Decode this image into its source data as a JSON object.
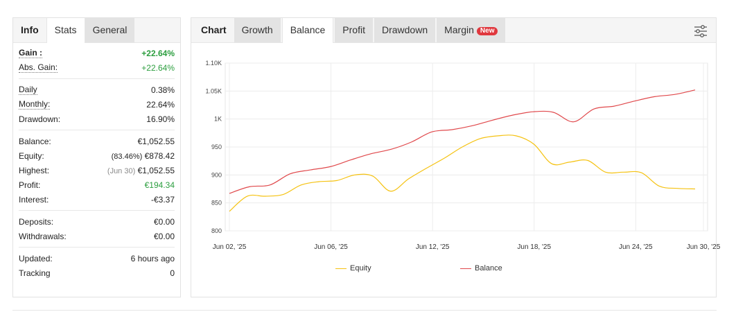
{
  "left_tabs": [
    "Info",
    "Stats",
    "General"
  ],
  "stats": {
    "gain_label": "Gain :",
    "gain_value": "+22.64%",
    "abs_gain_label": "Abs. Gain:",
    "abs_gain_value": "+22.64%",
    "daily_label": "Daily",
    "daily_value": "0.38%",
    "monthly_label": "Monthly:",
    "monthly_value": "22.64%",
    "drawdown_label": "Drawdown:",
    "drawdown_value": "16.90%",
    "balance_label": "Balance:",
    "balance_value": "€1,052.55",
    "equity_label": "Equity:",
    "equity_pct": "(83.46%)",
    "equity_value": "€878.42",
    "highest_label": "Highest:",
    "highest_date": "(Jun 30)",
    "highest_value": "€1,052.55",
    "profit_label": "Profit:",
    "profit_value": "€194.34",
    "interest_label": "Interest:",
    "interest_value": "-€3.37",
    "deposits_label": "Deposits:",
    "deposits_value": "€0.00",
    "withdrawals_label": "Withdrawals:",
    "withdrawals_value": "€0.00",
    "updated_label": "Updated:",
    "updated_value": "6 hours ago",
    "tracking_label": "Tracking",
    "tracking_value": "0"
  },
  "right_tabs": {
    "chart": "Chart",
    "growth": "Growth",
    "balance": "Balance",
    "profit": "Profit",
    "drawdown": "Drawdown",
    "margin": "Margin",
    "new_badge": "New"
  },
  "icons": {
    "settings": "sliders-icon"
  },
  "colors": {
    "equity": "#f5c211",
    "balance": "#e0484b",
    "gain_green": "#2c9e3f",
    "badge": "#e0383e"
  },
  "chart_data": {
    "type": "line",
    "x_ticks": [
      "Jun 02, '25",
      "Jun 06, '25",
      "Jun 12, '25",
      "Jun 18, '25",
      "Jun 24, '25",
      "Jun 30, '25"
    ],
    "y_ticks": [
      "800",
      "850",
      "900",
      "950",
      "1K",
      "1.05K",
      "1.10K"
    ],
    "ylim": [
      800,
      1100
    ],
    "xlim": [
      "2025-06-02",
      "2025-06-30"
    ],
    "grid": true,
    "legend_position": "bottom",
    "series": [
      {
        "name": "Equity",
        "color": "#f5c211",
        "points": [
          [
            "2025-06-02",
            835
          ],
          [
            "2025-06-03",
            862
          ],
          [
            "2025-06-04",
            862
          ],
          [
            "2025-06-05",
            865
          ],
          [
            "2025-06-06",
            882
          ],
          [
            "2025-06-07",
            888
          ],
          [
            "2025-06-08",
            890
          ],
          [
            "2025-06-09",
            900
          ],
          [
            "2025-06-10",
            898
          ],
          [
            "2025-06-11",
            871
          ],
          [
            "2025-06-12",
            893
          ],
          [
            "2025-06-13",
            912
          ],
          [
            "2025-06-14",
            930
          ],
          [
            "2025-06-15",
            950
          ],
          [
            "2025-06-16",
            965
          ],
          [
            "2025-06-17",
            970
          ],
          [
            "2025-06-18",
            970
          ],
          [
            "2025-06-19",
            955
          ],
          [
            "2025-06-20",
            920
          ],
          [
            "2025-06-21",
            923
          ],
          [
            "2025-06-22",
            926
          ],
          [
            "2025-06-23",
            905
          ],
          [
            "2025-06-24",
            905
          ],
          [
            "2025-06-25",
            904
          ],
          [
            "2025-06-26",
            880
          ],
          [
            "2025-06-27",
            876
          ],
          [
            "2025-06-28",
            875
          ]
        ]
      },
      {
        "name": "Balance",
        "color": "#e0484b",
        "points": [
          [
            "2025-06-02",
            867
          ],
          [
            "2025-06-03",
            879
          ],
          [
            "2025-06-04",
            882
          ],
          [
            "2025-06-05",
            902
          ],
          [
            "2025-06-06",
            909
          ],
          [
            "2025-06-07",
            915
          ],
          [
            "2025-06-08",
            927
          ],
          [
            "2025-06-09",
            938
          ],
          [
            "2025-06-10",
            946
          ],
          [
            "2025-06-11",
            959
          ],
          [
            "2025-06-12",
            977
          ],
          [
            "2025-06-13",
            981
          ],
          [
            "2025-06-14",
            988
          ],
          [
            "2025-06-15",
            998
          ],
          [
            "2025-06-16",
            1007
          ],
          [
            "2025-06-17",
            1013
          ],
          [
            "2025-06-18",
            1012
          ],
          [
            "2025-06-19",
            995
          ],
          [
            "2025-06-20",
            1018
          ],
          [
            "2025-06-21",
            1023
          ],
          [
            "2025-06-22",
            1032
          ],
          [
            "2025-06-23",
            1040
          ],
          [
            "2025-06-24",
            1044
          ],
          [
            "2025-06-25",
            1052
          ]
        ]
      }
    ]
  }
}
